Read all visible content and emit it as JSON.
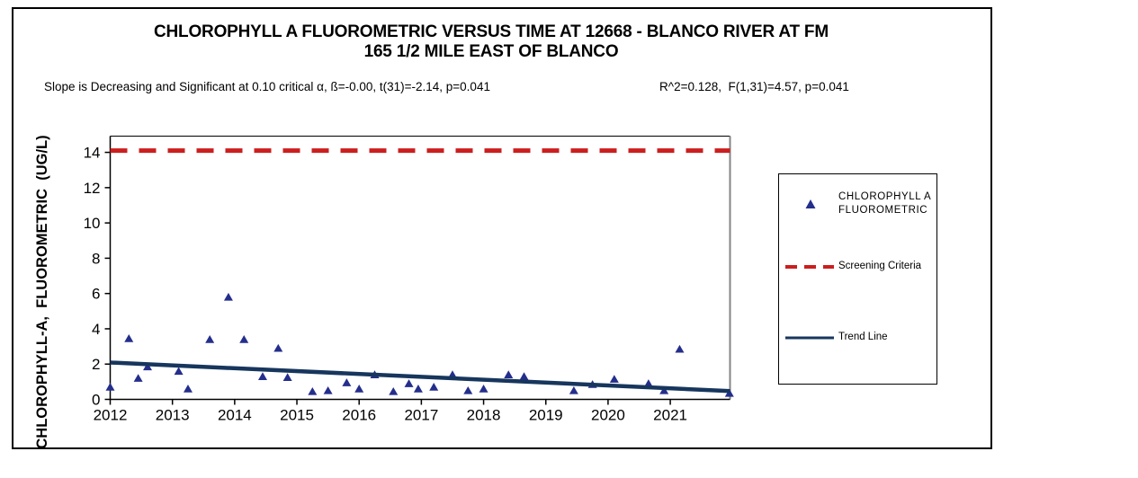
{
  "title": {
    "line1": "CHLOROPHYLL A FLUOROMETRIC VERSUS TIME AT 12668 - BLANCO RIVER AT FM",
    "line2": "165 1/2 MILE EAST OF BLANCO"
  },
  "stats": {
    "left": "Slope is Decreasing and Significant at 0.10 critical α, ß=-0.00, t(31)=-2.14, p=0.041",
    "right": "R^2=0.128,  F(1,31)=4.57, p=0.041"
  },
  "colors": {
    "marker": "#242E8C",
    "trend": "#17365D",
    "screening": "#CC1E1E",
    "axis": "#000000",
    "plot_border_right": "#858585",
    "frame": "#000000",
    "text": "#000000",
    "background": "#FFFFFF"
  },
  "legend": {
    "entries": [
      {
        "label_line1": "CHLOROPHYLL A",
        "label_line2": "FLUOROMETRIC",
        "marker": "triangle"
      },
      {
        "label": "Screening Criteria",
        "marker": "dashed-line"
      },
      {
        "label": "Trend Line",
        "marker": "solid-line"
      }
    ]
  },
  "chart_data": {
    "type": "scatter",
    "title": "CHLOROPHYLL A FLUOROMETRIC VERSUS TIME AT 12668 - BLANCO RIVER AT FM 165 1/2 MILE EAST OF BLANCO",
    "xlabel": "",
    "ylabel": "CHLOROPHYLL-A,  FLUOROMETRIC  (UG/L)",
    "xlim": [
      2012,
      2021.96
    ],
    "ylim": [
      0,
      14.92
    ],
    "x_ticks": [
      2012,
      2013,
      2014,
      2015,
      2016,
      2017,
      2018,
      2019,
      2020,
      2021
    ],
    "y_ticks": [
      0,
      2,
      4,
      6,
      8,
      10,
      12,
      14
    ],
    "grid": false,
    "legend_position": "right",
    "series": [
      {
        "name": "CHLOROPHYLL A FLUOROMETRIC",
        "kind": "scatter",
        "marker": "triangle",
        "points": [
          [
            2012.0,
            0.7
          ],
          [
            2012.3,
            3.45
          ],
          [
            2012.45,
            1.2
          ],
          [
            2012.6,
            1.85
          ],
          [
            2013.1,
            1.6
          ],
          [
            2013.25,
            0.6
          ],
          [
            2013.6,
            3.4
          ],
          [
            2013.9,
            5.8
          ],
          [
            2014.15,
            3.4
          ],
          [
            2014.45,
            1.3
          ],
          [
            2014.7,
            2.9
          ],
          [
            2014.85,
            1.25
          ],
          [
            2015.25,
            0.45
          ],
          [
            2015.5,
            0.5
          ],
          [
            2015.8,
            0.95
          ],
          [
            2016.0,
            0.6
          ],
          [
            2016.25,
            1.4
          ],
          [
            2016.55,
            0.45
          ],
          [
            2016.8,
            0.9
          ],
          [
            2016.95,
            0.6
          ],
          [
            2017.2,
            0.7
          ],
          [
            2017.5,
            1.4
          ],
          [
            2017.75,
            0.5
          ],
          [
            2018.0,
            0.6
          ],
          [
            2018.4,
            1.4
          ],
          [
            2018.65,
            1.3
          ],
          [
            2019.45,
            0.5
          ],
          [
            2019.75,
            0.85
          ],
          [
            2020.1,
            1.15
          ],
          [
            2020.65,
            0.9
          ],
          [
            2020.9,
            0.5
          ],
          [
            2021.15,
            2.85
          ],
          [
            2021.95,
            0.35
          ]
        ]
      },
      {
        "name": "Screening Criteria",
        "kind": "horizontal-line",
        "y": 14.1,
        "style": "dashed"
      },
      {
        "name": "Trend Line",
        "kind": "line",
        "points": [
          [
            2012.0,
            2.09
          ],
          [
            2021.96,
            0.47
          ]
        ]
      }
    ]
  }
}
